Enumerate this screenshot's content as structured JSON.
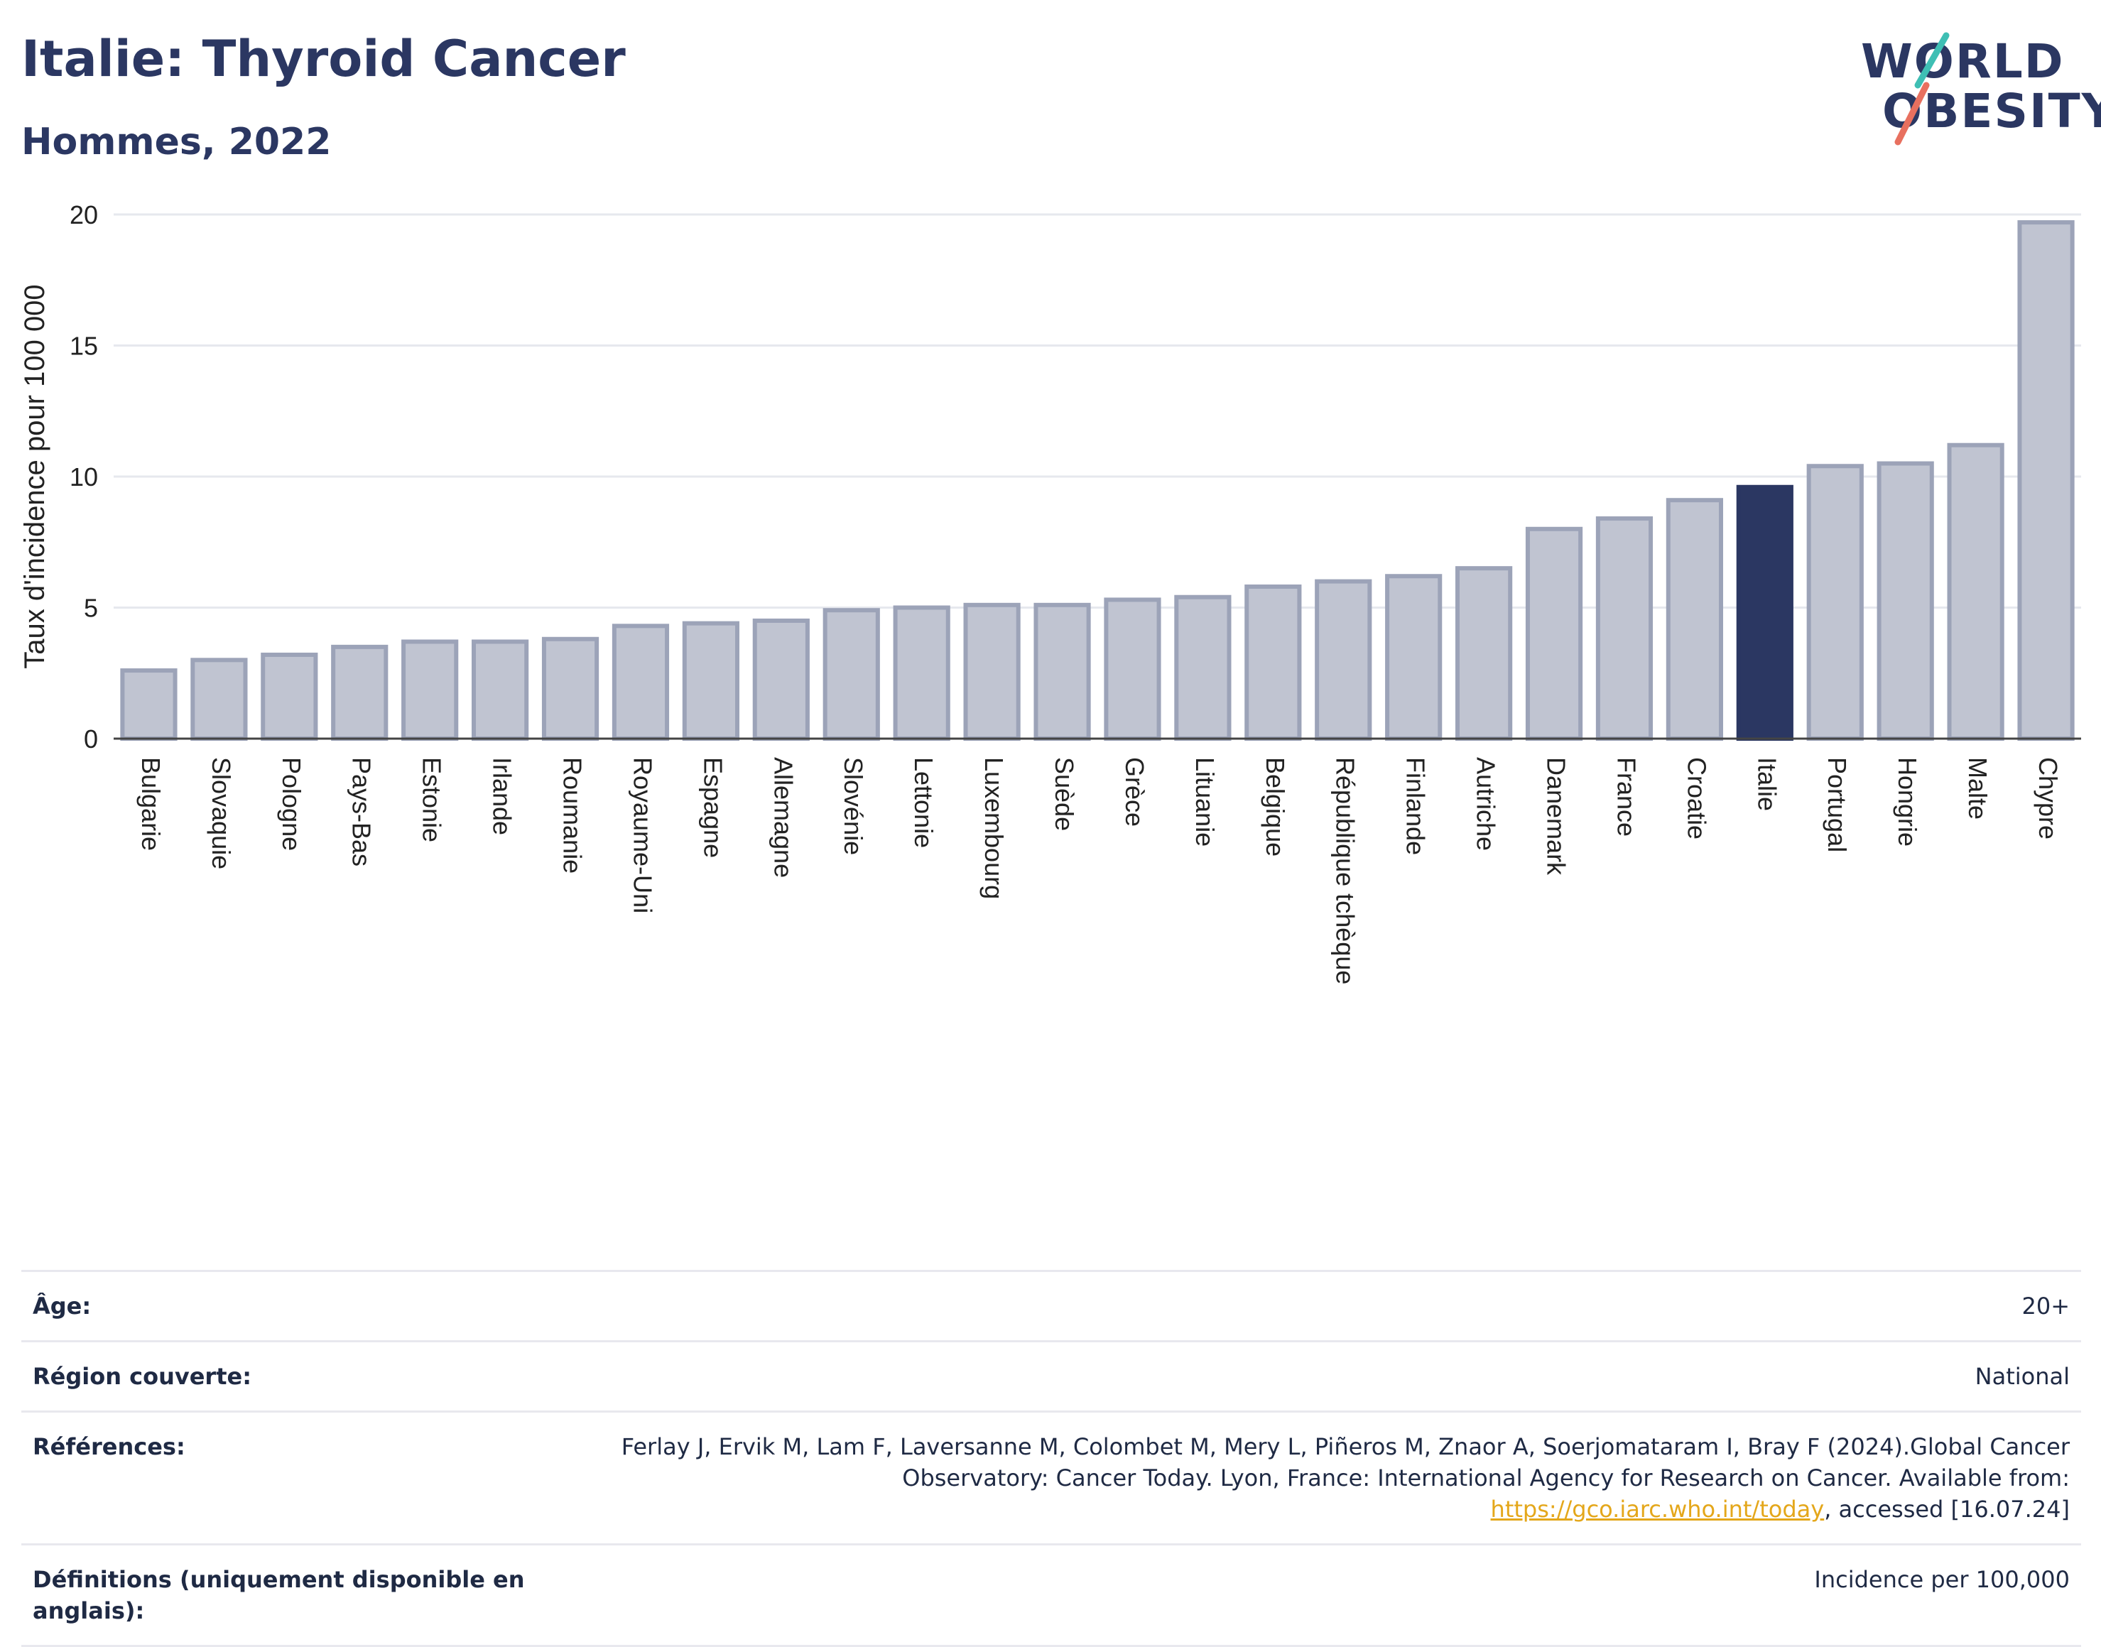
{
  "header": {
    "title": "Italie: Thyroid Cancer",
    "subtitle": "Hommes, 2022",
    "logo_line1": "WORLD",
    "logo_line2": "OBESITY"
  },
  "colors": {
    "highlight_bar": "#2b3762",
    "bar": "#c0c4d1",
    "bar_border": "#9ca3b8",
    "grid": "#e6e8ee",
    "logo_teal": "#3fbfb4",
    "logo_coral": "#e8705f"
  },
  "chart_data": {
    "type": "bar",
    "ylabel": "Taux d'incidence pour 100 000",
    "ylim": [
      0,
      20
    ],
    "yticks": [
      0,
      5,
      10,
      15,
      20
    ],
    "highlight": "Italie",
    "categories": [
      "Bulgarie",
      "Slovaquie",
      "Pologne",
      "Pays-Bas",
      "Estonie",
      "Irlande",
      "Roumanie",
      "Royaume-Uni",
      "Espagne",
      "Allemagne",
      "Slovénie",
      "Lettonie",
      "Luxembourg",
      "Suède",
      "Grèce",
      "Lituanie",
      "Belgique",
      "République tchèque",
      "Finlande",
      "Autriche",
      "Danemark",
      "France",
      "Croatie",
      "Italie",
      "Portugal",
      "Hongrie",
      "Malte",
      "Chypre"
    ],
    "values": [
      2.6,
      3.0,
      3.2,
      3.5,
      3.7,
      3.7,
      3.8,
      4.3,
      4.4,
      4.5,
      4.9,
      5.0,
      5.1,
      5.1,
      5.3,
      5.4,
      5.8,
      6.0,
      6.2,
      6.5,
      8.0,
      8.4,
      9.1,
      9.6,
      10.4,
      10.5,
      11.2,
      19.7
    ],
    "grid": true
  },
  "meta": {
    "age_label": "Âge:",
    "age_value": "20+",
    "region_label": "Région couverte:",
    "region_value": "National",
    "refs_label": "Références:",
    "refs_text": "Ferlay J, Ervik M, Lam F, Laversanne M, Colombet M, Mery L, Piñeros M, Znaor A, Soerjomataram I, Bray F (2024).Global Cancer Observatory: Cancer Today. Lyon, France: International Agency for Research on Cancer. Available from: ",
    "refs_link": "https://gco.iarc.who.int/today",
    "refs_suffix": ", accessed [16.07.24]",
    "defs_label": "Définitions (uniquement disponible en anglais):",
    "defs_value": "Incidence per 100,000"
  }
}
